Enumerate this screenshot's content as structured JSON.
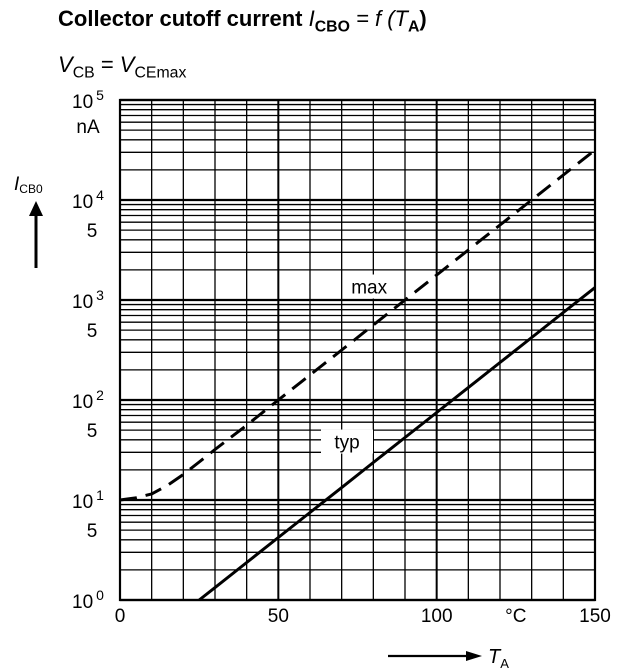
{
  "title": {
    "text": "Collector cutoff current",
    "symbol": "I",
    "symbol_sub": "CBO",
    "rel": "= f (T",
    "rel_sub": "A",
    "close": ")"
  },
  "subtitle": {
    "lhs": "V",
    "lhs_sub": "CB",
    "eq": "=",
    "rhs": "V",
    "rhs_sub": "CEmax"
  },
  "chart_data": {
    "type": "line",
    "xlabel": "T",
    "xlabel_sub": "A",
    "ylabel": "I",
    "ylabel_sub": "CB0",
    "y_unit": "nA",
    "x_unit": "°C",
    "xlim": [
      0,
      150
    ],
    "ylim": [
      1,
      100000
    ],
    "y_scale": "log",
    "grid": true,
    "x_ticks": [
      {
        "value": 0,
        "label": "0"
      },
      {
        "value": 50,
        "label": "50"
      },
      {
        "value": 100,
        "label": "100"
      },
      {
        "value": 150,
        "label": "150"
      }
    ],
    "y_ticks": [
      {
        "value": 1,
        "base": "10",
        "exp": "0"
      },
      {
        "value": 5,
        "label": "5"
      },
      {
        "value": 10,
        "base": "10",
        "exp": "1"
      },
      {
        "value": 50,
        "label": "5"
      },
      {
        "value": 100,
        "base": "10",
        "exp": "2"
      },
      {
        "value": 500,
        "label": "5"
      },
      {
        "value": 1000,
        "base": "10",
        "exp": "3"
      },
      {
        "value": 5000,
        "label": "5"
      },
      {
        "value": 10000,
        "base": "10",
        "exp": "4"
      },
      {
        "value": 100000,
        "base": "10",
        "exp": "5"
      }
    ],
    "series": [
      {
        "name": "max",
        "style": "dashed",
        "x": [
          0,
          5,
          10,
          15,
          20,
          25,
          30,
          40,
          50,
          60,
          70,
          80,
          90,
          100,
          110,
          120,
          130,
          140,
          150
        ],
        "y": [
          10,
          10.5,
          11.5,
          14,
          18,
          24,
          32,
          56,
          100,
          178,
          316,
          562,
          1000,
          1780,
          3160,
          5620,
          10000,
          17800,
          31600
        ]
      },
      {
        "name": "typ",
        "style": "solid",
        "x": [
          25,
          30,
          40,
          50,
          60,
          70,
          80,
          90,
          100,
          110,
          120,
          130,
          140,
          150
        ],
        "y": [
          1,
          1.33,
          2.37,
          4.22,
          7.5,
          13.3,
          23.7,
          42.2,
          75,
          133,
          237,
          422,
          750,
          1330
        ]
      }
    ]
  }
}
